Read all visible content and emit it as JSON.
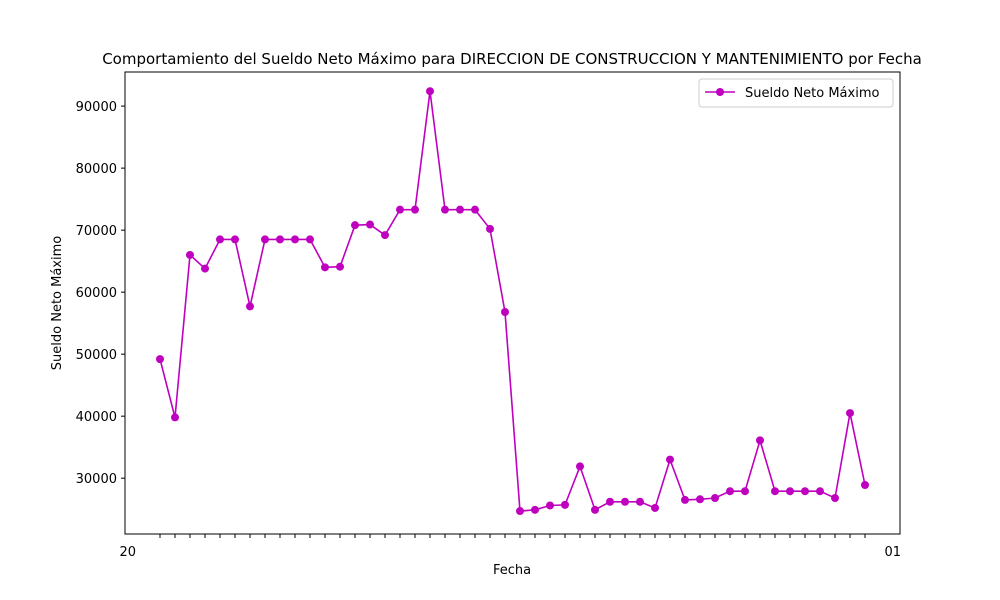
{
  "chart_data": {
    "type": "line",
    "title": "Comportamiento del Sueldo Neto Máximo para DIRECCION DE CONSTRUCCION Y MANTENIMIENTO por Fecha",
    "xlabel": "Fecha",
    "ylabel": "Sueldo Neto Máximo",
    "ylim": [
      21000,
      95500
    ],
    "yticks": [
      30000,
      40000,
      50000,
      60000,
      70000,
      80000,
      90000
    ],
    "ytick_labels": [
      "30000",
      "40000",
      "50000",
      "60000",
      "70000",
      "80000",
      "90000"
    ],
    "x_tick_label_prefix": "20",
    "x_tick_label_suffix": "01",
    "grid": false,
    "legend_position": "top-right",
    "series": [
      {
        "name": "Sueldo Neto Máximo",
        "color": "#bf00bf",
        "marker": "circle",
        "values": [
          49200,
          39800,
          66000,
          63800,
          68500,
          68500,
          57700,
          68500,
          68500,
          68500,
          68500,
          64000,
          64100,
          70800,
          70900,
          69200,
          73300,
          73300,
          92400,
          73300,
          73300,
          73300,
          70200,
          56800,
          24700,
          24900,
          25600,
          25700,
          31900,
          24900,
          26200,
          26200,
          26200,
          25200,
          33000,
          26500,
          26600,
          26800,
          27900,
          27900,
          36100,
          27900,
          27900,
          27900,
          27900,
          26800,
          40500,
          28900
        ]
      }
    ]
  }
}
